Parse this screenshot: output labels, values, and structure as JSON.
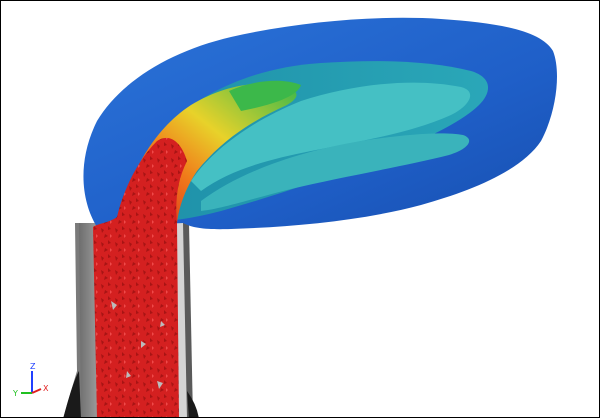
{
  "viewport": {
    "background": "#ffffff",
    "border": "#000000"
  },
  "scene": {
    "stack_color": "#a9a9a9",
    "stack_dark": "#6e6e6e",
    "plume_core": "#d42020",
    "plume_outer": "#1f5fc8",
    "plume_mid": "#2aa7b8",
    "plume_inner": "#45c0c4",
    "plume_hot_orange": "#f07a1a",
    "plume_hot_yellow": "#e8d22a",
    "plume_green": "#3cb84a"
  },
  "axis_triad": {
    "labels": {
      "z": "Z",
      "y": "Y",
      "x": "X"
    },
    "colors": {
      "z": "#2040ff",
      "y": "#20c020",
      "x": "#e02020"
    }
  }
}
